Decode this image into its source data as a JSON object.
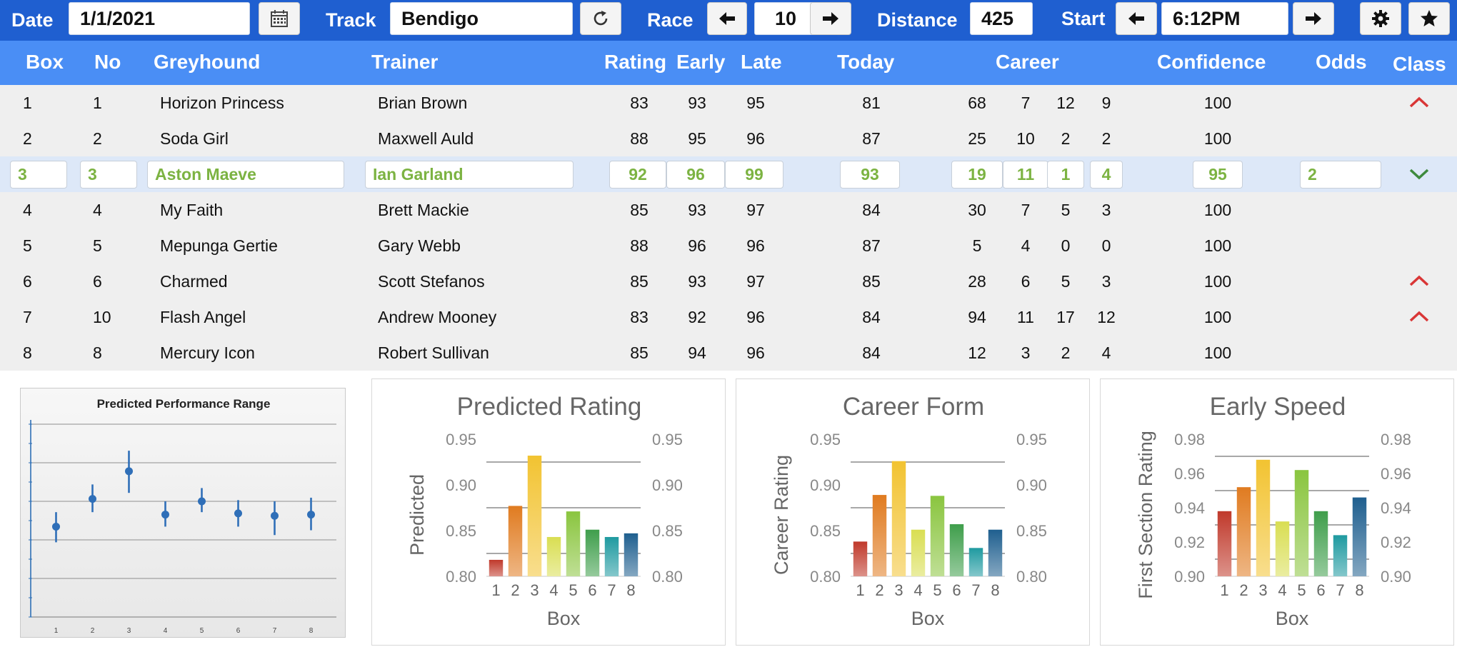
{
  "toolbar": {
    "date_label": "Date",
    "date_value": "1/1/2021",
    "calendar_icon": "calendar-icon",
    "track_label": "Track",
    "track_value": "Bendigo",
    "refresh_icon": "refresh-icon",
    "race_label": "Race",
    "race_value": "10",
    "distance_label": "Distance",
    "distance_value": "425",
    "start_label": "Start",
    "start_value": "6:12PM",
    "settings_icon": "gear-icon",
    "favorite_icon": "star-icon"
  },
  "columns": {
    "box": "Box",
    "no": "No",
    "greyhound": "Greyhound",
    "trainer": "Trainer",
    "rating": "Rating",
    "early": "Early",
    "late": "Late",
    "today": "Today",
    "career": "Career",
    "confidence": "Confidence",
    "odds": "Odds",
    "class": "Class"
  },
  "rows": [
    {
      "box": "1",
      "no": "1",
      "greyhound": "Horizon Princess",
      "trainer": "Brian Brown",
      "rating": "83",
      "early": "93",
      "late": "95",
      "today": "81",
      "career": [
        "68",
        "7",
        "12",
        "9"
      ],
      "confidence": "100",
      "odds": "",
      "class": "up",
      "selected": false
    },
    {
      "box": "2",
      "no": "2",
      "greyhound": "Soda Girl",
      "trainer": "Maxwell Auld",
      "rating": "88",
      "early": "95",
      "late": "96",
      "today": "87",
      "career": [
        "25",
        "10",
        "2",
        "2"
      ],
      "confidence": "100",
      "odds": "",
      "class": "",
      "selected": false
    },
    {
      "box": "3",
      "no": "3",
      "greyhound": "Aston Maeve",
      "trainer": "Ian Garland",
      "rating": "92",
      "early": "96",
      "late": "99",
      "today": "93",
      "career": [
        "19",
        "11",
        "1",
        "4"
      ],
      "confidence": "95",
      "odds": "2",
      "class": "down",
      "selected": true
    },
    {
      "box": "4",
      "no": "4",
      "greyhound": "My Faith",
      "trainer": "Brett Mackie",
      "rating": "85",
      "early": "93",
      "late": "97",
      "today": "84",
      "career": [
        "30",
        "7",
        "5",
        "3"
      ],
      "confidence": "100",
      "odds": "",
      "class": "",
      "selected": false
    },
    {
      "box": "5",
      "no": "5",
      "greyhound": "Mepunga Gertie",
      "trainer": "Gary Webb",
      "rating": "88",
      "early": "96",
      "late": "96",
      "today": "87",
      "career": [
        "5",
        "4",
        "0",
        "0"
      ],
      "confidence": "100",
      "odds": "",
      "class": "",
      "selected": false
    },
    {
      "box": "6",
      "no": "6",
      "greyhound": "Charmed",
      "trainer": "Scott Stefanos",
      "rating": "85",
      "early": "93",
      "late": "97",
      "today": "85",
      "career": [
        "28",
        "6",
        "5",
        "3"
      ],
      "confidence": "100",
      "odds": "",
      "class": "up",
      "selected": false
    },
    {
      "box": "7",
      "no": "10",
      "greyhound": "Flash Angel",
      "trainer": "Andrew Mooney",
      "rating": "83",
      "early": "92",
      "late": "96",
      "today": "84",
      "career": [
        "94",
        "11",
        "17",
        "12"
      ],
      "confidence": "100",
      "odds": "",
      "class": "up",
      "selected": false
    },
    {
      "box": "8",
      "no": "8",
      "greyhound": "Mercury Icon",
      "trainer": "Robert Sullivan",
      "rating": "85",
      "early": "94",
      "late": "96",
      "today": "84",
      "career": [
        "12",
        "3",
        "2",
        "4"
      ],
      "confidence": "100",
      "odds": "",
      "class": "",
      "selected": false
    }
  ],
  "colors": {
    "toolbar": "#1f5fd0",
    "header": "#4a8ef5",
    "selected_text": "#7cb342",
    "class_up": "#d93636",
    "class_down": "#3d8a3d",
    "bar_colors": [
      "#c0392b",
      "#e07b20",
      "#f2c331",
      "#d9de52",
      "#8ac53f",
      "#3f9e4b",
      "#1f9aa0",
      "#1f5f8f"
    ]
  },
  "chart_data": [
    {
      "type": "scatter",
      "title": "Predicted Performance Range",
      "categories": [
        "1",
        "2",
        "3",
        "4",
        "5",
        "6",
        "7",
        "8"
      ],
      "values": [
        0.855,
        0.878,
        0.901,
        0.865,
        0.876,
        0.866,
        0.864,
        0.865
      ],
      "error_low": [
        0.842,
        0.867,
        0.883,
        0.855,
        0.867,
        0.855,
        0.848,
        0.852
      ],
      "error_high": [
        0.867,
        0.89,
        0.918,
        0.876,
        0.887,
        0.877,
        0.876,
        0.879
      ],
      "ylim": [
        0.78,
        0.94
      ],
      "grid": true
    },
    {
      "type": "bar",
      "title": "Predicted Rating",
      "xlabel": "Box",
      "ylabel": "Predicted",
      "categories": [
        "1",
        "2",
        "3",
        "4",
        "5",
        "6",
        "7",
        "8"
      ],
      "values": [
        0.818,
        0.877,
        0.932,
        0.843,
        0.871,
        0.851,
        0.843,
        0.847
      ],
      "ylim": [
        0.8,
        0.95
      ],
      "yticks": [
        "0.80",
        "0.85",
        "0.90",
        "0.95"
      ],
      "gridlines": [
        0.825,
        0.875,
        0.925
      ],
      "grid": true
    },
    {
      "type": "bar",
      "title": "Career Form",
      "xlabel": "Box",
      "ylabel": "Career Rating",
      "categories": [
        "1",
        "2",
        "3",
        "4",
        "5",
        "6",
        "7",
        "8"
      ],
      "values": [
        0.838,
        0.889,
        0.926,
        0.851,
        0.888,
        0.857,
        0.831,
        0.851
      ],
      "ylim": [
        0.8,
        0.95
      ],
      "yticks": [
        "0.80",
        "0.85",
        "0.90",
        "0.95"
      ],
      "gridlines": [
        0.825,
        0.875,
        0.925
      ],
      "grid": true
    },
    {
      "type": "bar",
      "title": "Early Speed",
      "xlabel": "Box",
      "ylabel": "First Section Rating",
      "categories": [
        "1",
        "2",
        "3",
        "4",
        "5",
        "6",
        "7",
        "8"
      ],
      "values": [
        0.938,
        0.952,
        0.968,
        0.932,
        0.962,
        0.938,
        0.924,
        0.946
      ],
      "ylim": [
        0.9,
        0.98
      ],
      "yticks": [
        "0.90",
        "0.92",
        "0.94",
        "0.96",
        "0.98"
      ],
      "gridlines": [
        0.91,
        0.93,
        0.95,
        0.97
      ],
      "grid": true
    }
  ]
}
